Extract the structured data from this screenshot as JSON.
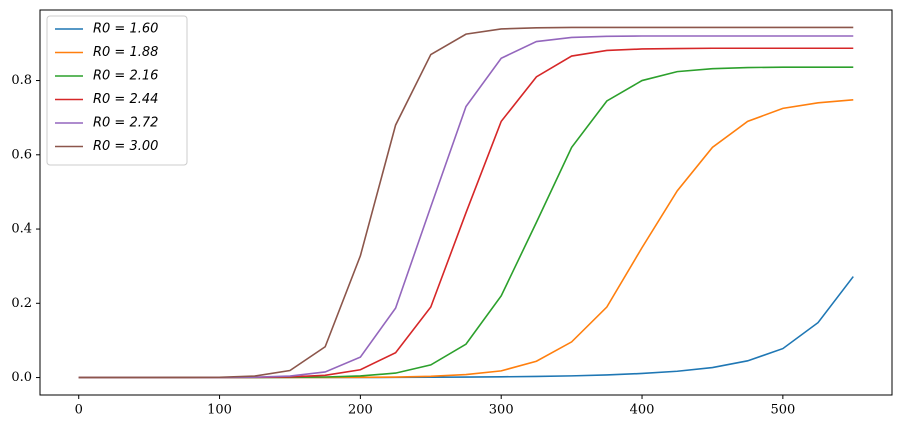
{
  "chart_data": {
    "type": "line",
    "x": [
      0,
      25,
      50,
      75,
      100,
      125,
      150,
      175,
      200,
      225,
      250,
      275,
      300,
      325,
      350,
      375,
      400,
      425,
      450,
      475,
      500,
      525,
      550
    ],
    "series": [
      {
        "name": "R0 = 1.60",
        "color": "#1f77b4",
        "values": [
          0.0001,
          0.0001,
          0.0001,
          0.0001,
          0.0001,
          0.0002,
          0.0002,
          0.0002,
          0.0003,
          0.0005,
          0.0008,
          0.0012,
          0.002,
          0.003,
          0.0045,
          0.007,
          0.011,
          0.017,
          0.027,
          0.045,
          0.078,
          0.148,
          0.272
        ]
      },
      {
        "name": "R0 = 1.88",
        "color": "#ff7f0e",
        "values": [
          0.0001,
          0.0001,
          0.0001,
          0.0001,
          0.0001,
          0.0002,
          0.0002,
          0.0003,
          0.0006,
          0.0014,
          0.0034,
          0.008,
          0.018,
          0.044,
          0.096,
          0.19,
          0.35,
          0.503,
          0.62,
          0.69,
          0.725,
          0.74,
          0.748
        ]
      },
      {
        "name": "R0 = 2.16",
        "color": "#2ca02c",
        "values": [
          0.0001,
          0.0001,
          0.0001,
          0.0001,
          0.0001,
          0.0002,
          0.0005,
          0.0015,
          0.0044,
          0.012,
          0.034,
          0.09,
          0.22,
          0.418,
          0.62,
          0.745,
          0.8,
          0.824,
          0.832,
          0.835,
          0.836,
          0.836,
          0.836
        ]
      },
      {
        "name": "R0 = 2.44",
        "color": "#d62728",
        "values": [
          0.0001,
          0.0001,
          0.0001,
          0.0001,
          0.0002,
          0.0005,
          0.0017,
          0.006,
          0.021,
          0.067,
          0.19,
          0.444,
          0.69,
          0.81,
          0.866,
          0.881,
          0.885,
          0.886,
          0.887,
          0.887,
          0.887,
          0.887,
          0.887
        ]
      },
      {
        "name": "R0 = 2.72",
        "color": "#9467bd",
        "values": [
          0.0001,
          0.0001,
          0.0001,
          0.0001,
          0.0002,
          0.001,
          0.004,
          0.015,
          0.055,
          0.187,
          0.46,
          0.73,
          0.86,
          0.905,
          0.916,
          0.919,
          0.92,
          0.92,
          0.92,
          0.92,
          0.92,
          0.92,
          0.92
        ]
      },
      {
        "name": "R0 = 3.00",
        "color": "#8c564b",
        "values": [
          0.0001,
          0.0001,
          0.0001,
          0.0002,
          0.0008,
          0.004,
          0.019,
          0.083,
          0.328,
          0.68,
          0.87,
          0.925,
          0.939,
          0.942,
          0.943,
          0.943,
          0.943,
          0.943,
          0.943,
          0.943,
          0.943,
          0.943,
          0.943
        ]
      }
    ],
    "xlim": [
      -27.5,
      577.5
    ],
    "ylim": [
      -0.047,
      0.99
    ],
    "xticks": [
      0,
      100,
      200,
      300,
      400,
      500
    ],
    "yticks": [
      {
        "value": 0,
        "label": "0.0"
      },
      0.2,
      0.4,
      0.6,
      0.8
    ],
    "legend": "upper-left",
    "grid": false
  }
}
